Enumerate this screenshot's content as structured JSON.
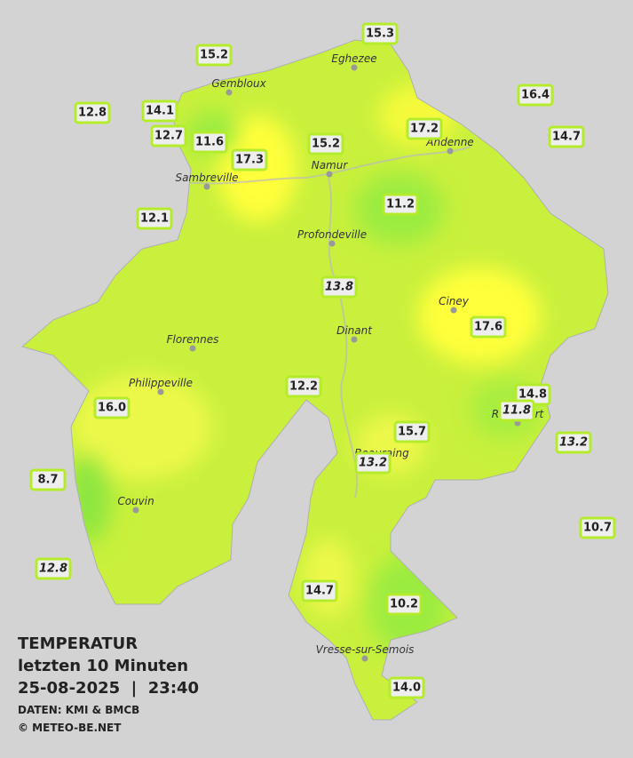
{
  "legend": {
    "title": "TEMPERATUR",
    "subtitle": "letzten 10 Minuten",
    "datetime": "25-08-2025  |  23:40",
    "source": "DATEN: KMI & BMCB",
    "copyright": "© METEO-BE.NET"
  },
  "cities": [
    "Eghezee",
    "Gembloux",
    "Andenne",
    "Namur",
    "Sambreville",
    "Profondeville",
    "Ciney",
    "Dinant",
    "Florennes",
    "Philippeville",
    "Rochefort",
    "Beauraing",
    "Couvin",
    "Vresse-sur-Semois"
  ],
  "stations": [
    {
      "value": "15.3",
      "italic": false
    },
    {
      "value": "15.2",
      "italic": false
    },
    {
      "value": "12.8",
      "italic": false
    },
    {
      "value": "14.1",
      "italic": false
    },
    {
      "value": "16.4",
      "italic": false
    },
    {
      "value": "17.2",
      "italic": false
    },
    {
      "value": "14.7",
      "italic": false
    },
    {
      "value": "12.7",
      "italic": false
    },
    {
      "value": "11.6",
      "italic": false
    },
    {
      "value": "15.2",
      "italic": false
    },
    {
      "value": "17.3",
      "italic": false
    },
    {
      "value": "12.1",
      "italic": false
    },
    {
      "value": "11.2",
      "italic": false
    },
    {
      "value": "13.8",
      "italic": true
    },
    {
      "value": "17.6",
      "italic": false
    },
    {
      "value": "12.2",
      "italic": false
    },
    {
      "value": "14.8",
      "italic": false
    },
    {
      "value": "11.8",
      "italic": true
    },
    {
      "value": "16.0",
      "italic": false
    },
    {
      "value": "13.2",
      "italic": true
    },
    {
      "value": "15.7",
      "italic": false
    },
    {
      "value": "13.2",
      "italic": true
    },
    {
      "value": "8.7",
      "italic": false
    },
    {
      "value": "10.7",
      "italic": false
    },
    {
      "value": "12.8",
      "italic": true
    },
    {
      "value": "14.7",
      "italic": false
    },
    {
      "value": "10.2",
      "italic": false
    },
    {
      "value": "14.0",
      "italic": false
    }
  ]
}
